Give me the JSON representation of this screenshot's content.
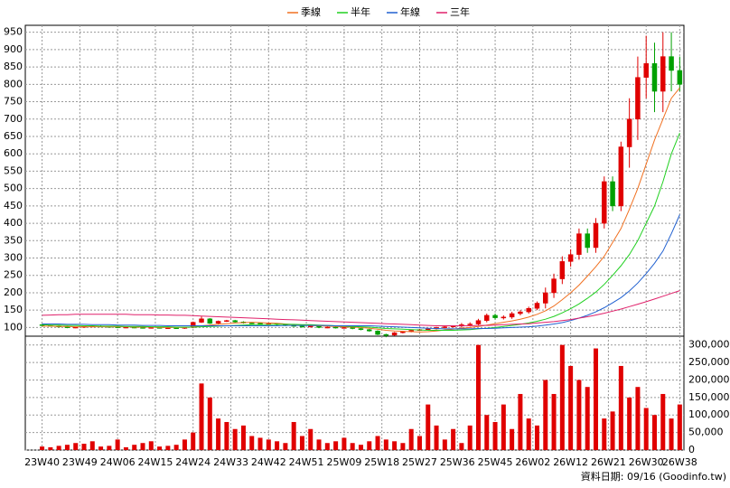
{
  "chart_data": [
    {
      "type": "candlestick",
      "x": [
        0,
        2,
        4,
        6,
        8,
        10,
        12,
        14,
        16,
        18,
        20,
        22,
        24,
        26,
        28,
        30,
        32,
        34,
        36,
        38,
        40,
        42,
        44,
        46,
        48,
        50,
        52,
        54,
        56,
        58,
        60,
        62,
        64,
        66,
        68,
        70,
        72,
        74,
        76,
        78,
        80,
        82,
        84,
        86,
        88,
        90,
        92,
        94,
        96,
        98,
        100,
        102,
        104,
        106,
        108,
        110,
        112,
        114,
        116,
        118,
        120,
        122,
        124,
        126,
        128,
        130,
        132,
        134,
        136,
        138,
        140,
        142,
        144,
        146,
        148,
        150,
        152
      ],
      "open": [
        108,
        106,
        104,
        102,
        100,
        101,
        103,
        104,
        103,
        102,
        100,
        101,
        100,
        99,
        100,
        99,
        99,
        98,
        100,
        115,
        125,
        112,
        118,
        120,
        116,
        113,
        112,
        110,
        111,
        108,
        106,
        104,
        102,
        104,
        100,
        101,
        99,
        100,
        97,
        94,
        90,
        80,
        78,
        85,
        88,
        92,
        94,
        96,
        100,
        102,
        104,
        108,
        110,
        120,
        135,
        128,
        130,
        140,
        145,
        155,
        170,
        200,
        240,
        290,
        310,
        370,
        330,
        400,
        520,
        450,
        620,
        700,
        820,
        860,
        780,
        880,
        840
      ],
      "high": [
        110,
        108,
        106,
        104,
        102,
        105,
        106,
        106,
        105,
        104,
        103,
        103,
        102,
        102,
        102,
        101,
        101,
        102,
        117,
        132,
        127,
        120,
        122,
        122,
        118,
        115,
        114,
        113,
        113,
        110,
        108,
        106,
        106,
        106,
        103,
        103,
        102,
        102,
        99,
        96,
        92,
        82,
        87,
        90,
        94,
        96,
        98,
        102,
        104,
        106,
        113,
        115,
        125,
        140,
        140,
        135,
        145,
        150,
        160,
        175,
        215,
        255,
        305,
        325,
        385,
        385,
        415,
        535,
        535,
        635,
        760,
        880,
        940,
        920,
        950,
        950,
        880
      ],
      "low": [
        104,
        104,
        100,
        98,
        98,
        99,
        101,
        101,
        101,
        98,
        98,
        98,
        97,
        97,
        97,
        97,
        96,
        96,
        98,
        113,
        110,
        110,
        116,
        114,
        111,
        110,
        108,
        108,
        106,
        104,
        102,
        100,
        100,
        98,
        98,
        97,
        97,
        95,
        92,
        88,
        78,
        72,
        76,
        83,
        86,
        90,
        92,
        94,
        98,
        100,
        99,
        103,
        105,
        115,
        123,
        123,
        125,
        135,
        140,
        150,
        155,
        185,
        225,
        275,
        295,
        315,
        315,
        385,
        435,
        435,
        560,
        640,
        760,
        720,
        720,
        780,
        780
      ],
      "close": [
        106,
        104,
        102,
        100,
        101,
        103,
        104,
        103,
        102,
        100,
        101,
        100,
        99,
        100,
        99,
        99,
        98,
        100,
        115,
        125,
        112,
        118,
        120,
        116,
        113,
        112,
        110,
        111,
        108,
        106,
        104,
        102,
        104,
        100,
        101,
        99,
        100,
        97,
        94,
        90,
        80,
        78,
        85,
        88,
        92,
        94,
        96,
        100,
        102,
        104,
        108,
        110,
        120,
        135,
        128,
        130,
        140,
        145,
        155,
        170,
        200,
        240,
        290,
        310,
        370,
        330,
        400,
        520,
        450,
        620,
        700,
        820,
        860,
        780,
        880,
        840,
        800
      ],
      "up_color": "#e00000",
      "down_color": "#00a000",
      "series": [
        {
          "name": "季線",
          "color": "#f07020",
          "values": [
            104,
            104,
            103,
            103,
            102,
            102,
            102,
            102,
            102,
            102,
            102,
            101,
            101,
            101,
            100,
            100,
            100,
            100,
            102,
            105,
            107,
            109,
            111,
            113,
            114,
            115,
            114,
            113,
            112,
            110,
            108,
            107,
            106,
            105,
            104,
            103,
            102,
            101,
            100,
            98,
            95,
            92,
            90,
            89,
            88,
            87,
            88,
            90,
            93,
            95,
            98,
            100,
            103,
            107,
            111,
            115,
            119,
            124,
            130,
            138,
            148,
            162,
            180,
            200,
            222,
            248,
            275,
            305,
            345,
            385,
            440,
            500,
            570,
            640,
            700,
            760,
            790
          ]
        },
        {
          "name": "半年",
          "color": "#20d020",
          "values": [
            108,
            107,
            107,
            106,
            106,
            105,
            105,
            104,
            104,
            104,
            103,
            103,
            103,
            102,
            102,
            102,
            101,
            101,
            101,
            102,
            103,
            104,
            105,
            106,
            107,
            108,
            108,
            108,
            109,
            109,
            109,
            108,
            108,
            107,
            106,
            105,
            104,
            103,
            102,
            101,
            99,
            97,
            96,
            95,
            94,
            93,
            92,
            92,
            92,
            92,
            93,
            94,
            96,
            98,
            100,
            103,
            106,
            109,
            113,
            118,
            124,
            132,
            142,
            154,
            168,
            184,
            202,
            224,
            250,
            278,
            310,
            350,
            400,
            450,
            520,
            600,
            660
          ]
        },
        {
          "name": "年線",
          "color": "#2060d0",
          "values": [
            110,
            110,
            110,
            109,
            109,
            109,
            108,
            108,
            108,
            107,
            107,
            107,
            106,
            106,
            106,
            105,
            105,
            105,
            105,
            105,
            105,
            105,
            105,
            105,
            105,
            105,
            105,
            105,
            105,
            106,
            106,
            106,
            106,
            106,
            106,
            105,
            105,
            105,
            105,
            105,
            104,
            103,
            102,
            101,
            100,
            99,
            98,
            97,
            96,
            96,
            96,
            96,
            97,
            97,
            98,
            99,
            100,
            101,
            102,
            104,
            107,
            110,
            114,
            120,
            127,
            135,
            145,
            157,
            171,
            186,
            205,
            228,
            255,
            285,
            320,
            370,
            425
          ]
        },
        {
          "name": "三年",
          "color": "#e0206a",
          "values": [
            135,
            136,
            137,
            137,
            138,
            138,
            138,
            138,
            138,
            138,
            138,
            137,
            137,
            137,
            136,
            136,
            135,
            135,
            134,
            133,
            132,
            131,
            130,
            129,
            128,
            127,
            126,
            125,
            124,
            123,
            122,
            121,
            120,
            119,
            118,
            117,
            116,
            115,
            114,
            113,
            112,
            111,
            110,
            109,
            108,
            107,
            106,
            105,
            105,
            105,
            105,
            105,
            106,
            106,
            107,
            108,
            109,
            110,
            111,
            113,
            115,
            117,
            120,
            123,
            127,
            131,
            136,
            141,
            147,
            153,
            160,
            167,
            174,
            182,
            190,
            198,
            206
          ]
        }
      ],
      "xlim": [
        -4,
        153
      ],
      "xticks": [
        {
          "value": 0,
          "label": "23W40"
        },
        {
          "value": 9,
          "label": "23W49"
        },
        {
          "value": 18,
          "label": "24W06"
        },
        {
          "value": 27,
          "label": "24W15"
        },
        {
          "value": 36,
          "label": "24W24"
        },
        {
          "value": 45,
          "label": "24W33"
        },
        {
          "value": 54,
          "label": "24W42"
        },
        {
          "value": 63,
          "label": "24W51"
        },
        {
          "value": 72,
          "label": "25W09"
        },
        {
          "value": 81,
          "label": "25W18"
        },
        {
          "value": 90,
          "label": "25W27"
        },
        {
          "value": 99,
          "label": "25W36"
        },
        {
          "value": 108,
          "label": "25W45"
        },
        {
          "value": 117,
          "label": "26W02"
        },
        {
          "value": 126,
          "label": "26W12"
        },
        {
          "value": 135,
          "label": "26W21"
        },
        {
          "value": 144,
          "label": "26W30"
        },
        {
          "value": 152,
          "label": "26W38"
        }
      ],
      "ylim": [
        75,
        970
      ],
      "yticks": [
        100,
        150,
        200,
        250,
        300,
        350,
        400,
        450,
        500,
        550,
        600,
        650,
        700,
        750,
        800,
        850,
        900,
        950
      ],
      "grid": true,
      "footer": "資料日期: 09/16  (Goodinfo.tw)"
    },
    {
      "type": "bar",
      "color": "#e00000",
      "values": [
        10000,
        8000,
        12000,
        15000,
        20000,
        18000,
        25000,
        10000,
        12000,
        30000,
        8000,
        15000,
        20000,
        25000,
        10000,
        12000,
        15000,
        30000,
        50000,
        190000,
        150000,
        90000,
        80000,
        60000,
        70000,
        40000,
        35000,
        30000,
        25000,
        20000,
        80000,
        40000,
        60000,
        30000,
        20000,
        25000,
        35000,
        20000,
        15000,
        25000,
        40000,
        30000,
        25000,
        20000,
        60000,
        40000,
        130000,
        70000,
        30000,
        60000,
        20000,
        70000,
        300000,
        100000,
        80000,
        130000,
        60000,
        160000,
        90000,
        70000,
        200000,
        160000,
        300000,
        240000,
        200000,
        180000,
        290000,
        90000,
        110000,
        240000,
        150000,
        180000,
        120000,
        100000,
        160000,
        90000,
        130000
      ],
      "ylim": [
        0,
        325000
      ],
      "yticks": [
        0,
        {
          "value": 50000,
          "label": "50,000"
        },
        {
          "value": 100000,
          "label": "100,000"
        },
        {
          "value": 150000,
          "label": "150,000"
        },
        {
          "value": 200000,
          "label": "200,000"
        },
        {
          "value": 250000,
          "label": "250,000"
        },
        {
          "value": 300000,
          "label": "300,000"
        }
      ]
    }
  ]
}
